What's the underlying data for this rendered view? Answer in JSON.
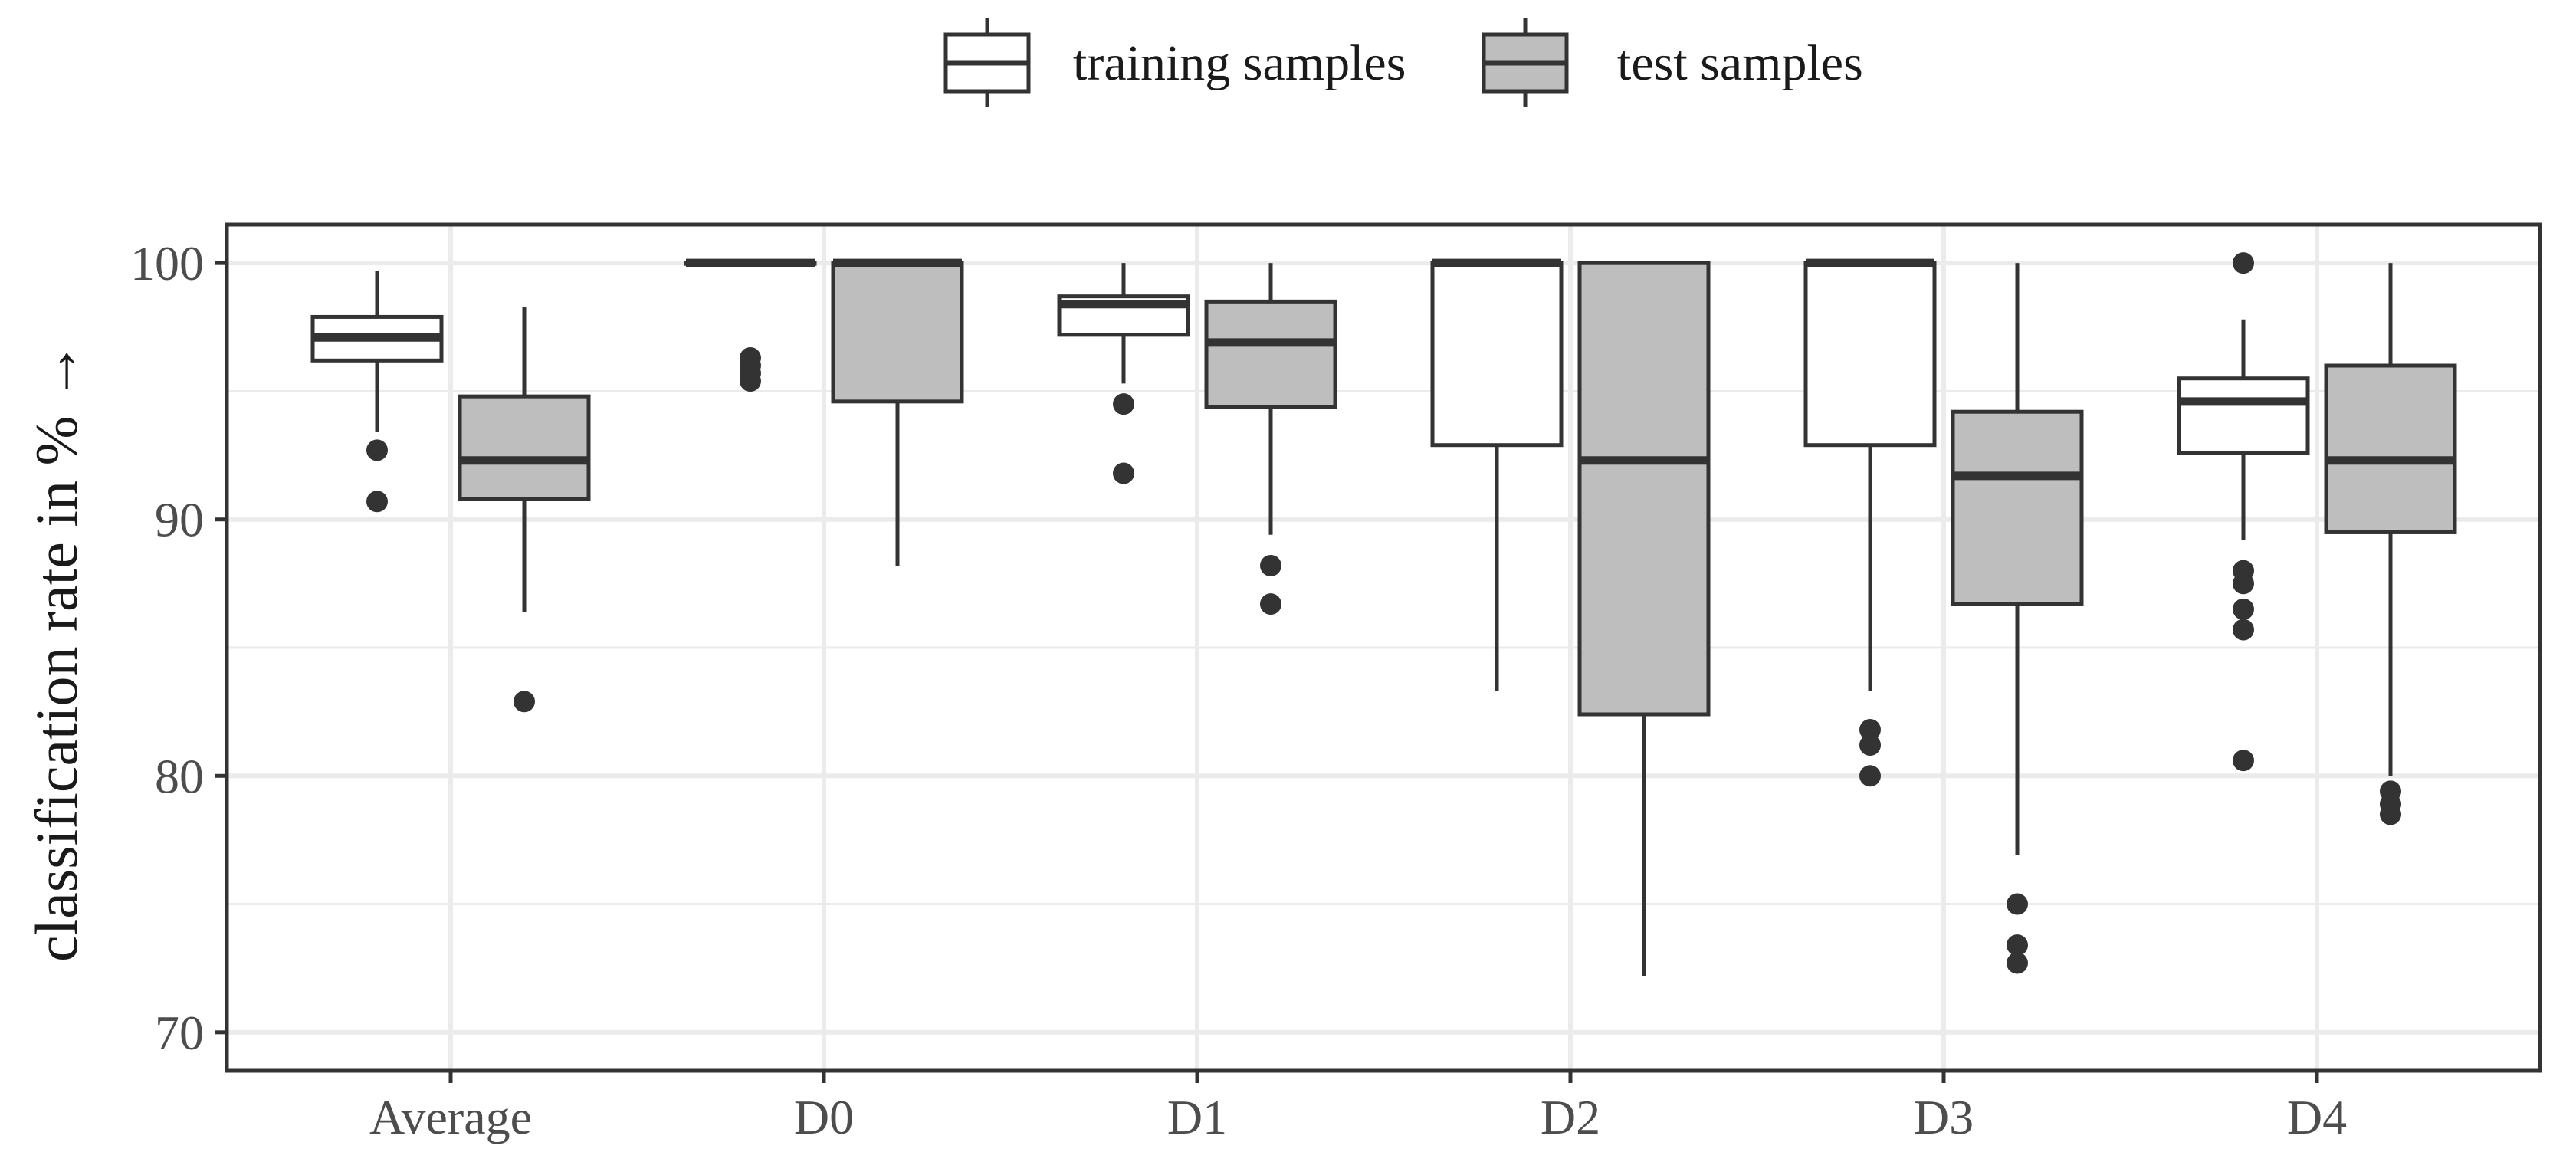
{
  "chart_data": {
    "type": "boxplot",
    "title": "",
    "xlabel": "",
    "ylabel": "classification rate in % →",
    "ylim": [
      68.5,
      101.5
    ],
    "yticks": [
      70,
      80,
      90,
      100
    ],
    "yminor": [
      75,
      85,
      95
    ],
    "grid": true,
    "legend_position": "top",
    "categories": [
      "Average",
      "D0",
      "D1",
      "D2",
      "D3",
      "D4"
    ],
    "series": [
      {
        "name": "training samples",
        "fill": "#ffffff",
        "boxes": [
          {
            "whisker_low": 93.4,
            "q1": 96.2,
            "median": 97.1,
            "q3": 97.9,
            "whisker_high": 99.7,
            "outliers": [
              92.7,
              90.7
            ]
          },
          {
            "whisker_low": 100,
            "q1": 100,
            "median": 100,
            "q3": 100,
            "whisker_high": 100,
            "outliers": [
              96.3,
              96.0,
              95.7,
              95.4
            ]
          },
          {
            "whisker_low": 95.3,
            "q1": 97.2,
            "median": 98.4,
            "q3": 98.7,
            "whisker_high": 100,
            "outliers": [
              94.5,
              91.8
            ]
          },
          {
            "whisker_low": 83.3,
            "q1": 92.9,
            "median": 100,
            "q3": 100,
            "whisker_high": 100,
            "outliers": []
          },
          {
            "whisker_low": 83.3,
            "q1": 92.9,
            "median": 100,
            "q3": 100,
            "whisker_high": 100,
            "outliers": [
              81.8,
              81.2,
              80.0
            ]
          },
          {
            "whisker_low": 89.2,
            "q1": 92.6,
            "median": 94.6,
            "q3": 95.5,
            "whisker_high": 97.8,
            "outliers": [
              100,
              88.0,
              87.5,
              86.5,
              85.7,
              80.6
            ]
          }
        ]
      },
      {
        "name": "test samples",
        "fill": "#bebebe",
        "boxes": [
          {
            "whisker_low": 86.4,
            "q1": 90.8,
            "median": 92.3,
            "q3": 94.8,
            "whisker_high": 98.3,
            "outliers": [
              82.9
            ]
          },
          {
            "whisker_low": 88.2,
            "q1": 94.6,
            "median": 100,
            "q3": 100,
            "whisker_high": 100,
            "outliers": []
          },
          {
            "whisker_low": 89.4,
            "q1": 94.4,
            "median": 96.9,
            "q3": 98.5,
            "whisker_high": 100,
            "outliers": [
              88.2,
              86.7
            ]
          },
          {
            "whisker_low": 72.2,
            "q1": 82.4,
            "median": 92.3,
            "q3": 100,
            "whisker_high": 100,
            "outliers": []
          },
          {
            "whisker_low": 76.9,
            "q1": 86.7,
            "median": 91.7,
            "q3": 94.2,
            "whisker_high": 100,
            "outliers": [
              75.0,
              73.4,
              72.7
            ]
          },
          {
            "whisker_low": 80.0,
            "q1": 89.5,
            "median": 92.3,
            "q3": 96.0,
            "whisker_high": 100,
            "outliers": [
              79.4,
              78.9,
              78.5
            ]
          }
        ]
      }
    ]
  }
}
